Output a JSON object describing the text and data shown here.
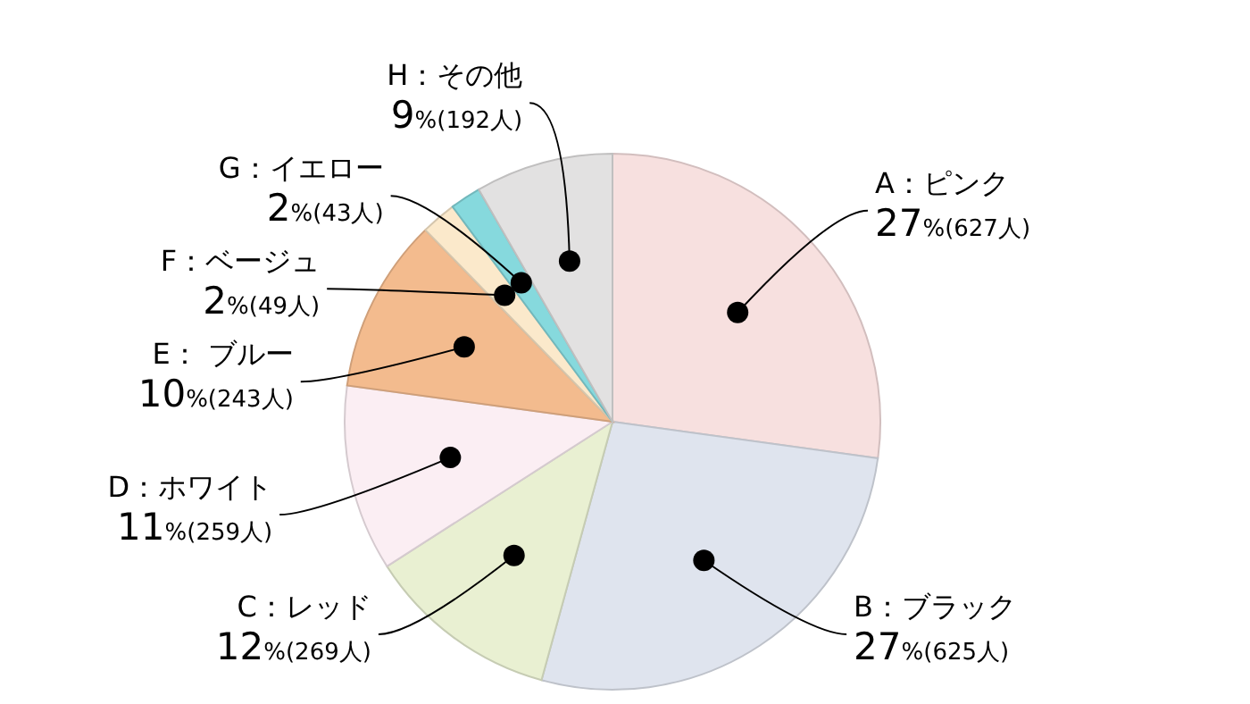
{
  "chart_data": {
    "type": "pie",
    "categories": [
      "A：ピンク",
      "B：ブラック",
      "C：レッド",
      "D：ホワイト",
      "E： ブルー",
      "F：ベージュ",
      "G：イエロー",
      "H：その他"
    ],
    "values": [
      627,
      625,
      269,
      259,
      243,
      49,
      43,
      192
    ],
    "colors": [
      "#f7e0df",
      "#dfe4ee",
      "#e9f0d2",
      "#fbeef3",
      "#f3bb8e",
      "#fbe9cb",
      "#86d9dd",
      "#e2e1e1"
    ],
    "value_labels": [
      "27%(627人)",
      "27%(625人)",
      "12%(269人)",
      "11%(259人)",
      "10%(243人)",
      "2%(49人)",
      "2%(43人)",
      "9%(192人)"
    ]
  }
}
